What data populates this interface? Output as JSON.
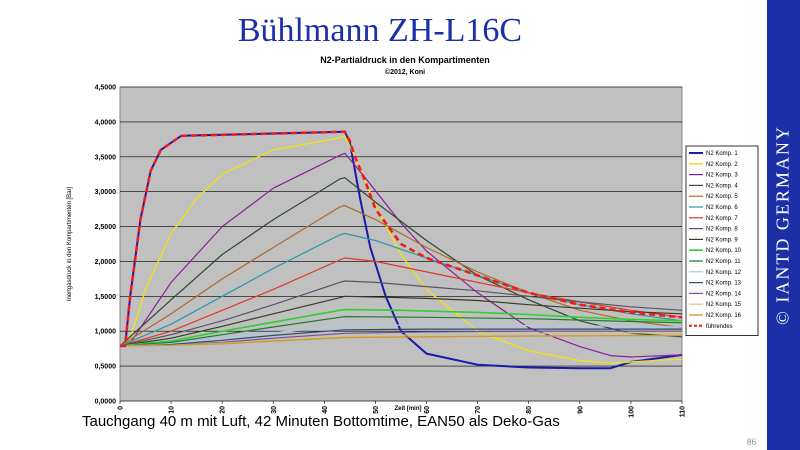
{
  "slide": {
    "title": "Bühlmann ZH-L16C",
    "caption": "Tauchgang 40 m mit Luft, 42 Minuten Bottomtime, EAN50 als Deko-Gas",
    "page_number": "86",
    "sidebar_text": "© IANTD GERMANY",
    "colors": {
      "title": "#1a2fa8",
      "sidebar": "#1c2fa6",
      "plot_bg": "#c0c0c0"
    }
  },
  "chart_data": {
    "type": "line",
    "title": "N2-Partialdruck in den Kompartimenten",
    "subtitle": "©2012, Koni",
    "xlabel": "Zeit [min]",
    "ylabel": "Inertgasdruck in den Kompartimenten [Bar]",
    "xlim": [
      0,
      110
    ],
    "ylim": [
      0,
      4.5
    ],
    "x_ticks": [
      0,
      10,
      20,
      30,
      40,
      50,
      60,
      70,
      80,
      90,
      100,
      110
    ],
    "y_ticks": [
      "0,0000",
      "0,5000",
      "1,0000",
      "1,5000",
      "2,0000",
      "2,5000",
      "3,0000",
      "3,5000",
      "4,0000",
      "4,5000"
    ],
    "grid": true,
    "legend_position": "right",
    "series": [
      {
        "name": "N2 Komp. 1",
        "color": "#1a1aa8",
        "width": 2,
        "values": [
          [
            0,
            0.79
          ],
          [
            1,
            0.79
          ],
          [
            2,
            1.5
          ],
          [
            4,
            2.6
          ],
          [
            6,
            3.3
          ],
          [
            8,
            3.6
          ],
          [
            12,
            3.8
          ],
          [
            44,
            3.86
          ],
          [
            45,
            3.7
          ],
          [
            46,
            3.3
          ],
          [
            47,
            2.9
          ],
          [
            49,
            2.2
          ],
          [
            52,
            1.5
          ],
          [
            55,
            1.0
          ],
          [
            60,
            0.68
          ],
          [
            70,
            0.52
          ],
          [
            80,
            0.48
          ],
          [
            90,
            0.47
          ],
          [
            96,
            0.47
          ],
          [
            100,
            0.56
          ],
          [
            104,
            0.6
          ],
          [
            110,
            0.66
          ]
        ]
      },
      {
        "name": "N2 Komp. 2",
        "color": "#f0e020",
        "width": 1.4,
        "values": [
          [
            0,
            0.79
          ],
          [
            2,
            0.9
          ],
          [
            5,
            1.6
          ],
          [
            10,
            2.4
          ],
          [
            15,
            2.9
          ],
          [
            20,
            3.25
          ],
          [
            30,
            3.6
          ],
          [
            43,
            3.77
          ],
          [
            44,
            3.8
          ],
          [
            46,
            3.5
          ],
          [
            50,
            2.8
          ],
          [
            55,
            2.1
          ],
          [
            60,
            1.6
          ],
          [
            70,
            1.0
          ],
          [
            80,
            0.72
          ],
          [
            90,
            0.58
          ],
          [
            96,
            0.54
          ],
          [
            100,
            0.56
          ],
          [
            110,
            0.6
          ]
        ]
      },
      {
        "name": "N2 Komp. 3",
        "color": "#8a1f96",
        "width": 1.2,
        "values": [
          [
            0,
            0.79
          ],
          [
            2,
            0.83
          ],
          [
            10,
            1.7
          ],
          [
            20,
            2.5
          ],
          [
            30,
            3.05
          ],
          [
            43,
            3.52
          ],
          [
            44,
            3.55
          ],
          [
            48,
            3.2
          ],
          [
            55,
            2.55
          ],
          [
            60,
            2.15
          ],
          [
            70,
            1.55
          ],
          [
            80,
            1.05
          ],
          [
            90,
            0.78
          ],
          [
            96,
            0.65
          ],
          [
            100,
            0.63
          ],
          [
            110,
            0.66
          ]
        ]
      },
      {
        "name": "N2 Komp. 4",
        "color": "#2e4a2e",
        "width": 1.2,
        "values": [
          [
            0,
            0.79
          ],
          [
            10,
            1.45
          ],
          [
            20,
            2.1
          ],
          [
            30,
            2.6
          ],
          [
            43,
            3.18
          ],
          [
            44,
            3.2
          ],
          [
            50,
            2.85
          ],
          [
            60,
            2.3
          ],
          [
            70,
            1.8
          ],
          [
            80,
            1.45
          ],
          [
            90,
            1.15
          ],
          [
            100,
            0.97
          ],
          [
            110,
            0.92
          ]
        ]
      },
      {
        "name": "N2 Komp. 5",
        "color": "#b06a2a",
        "width": 1.2,
        "values": [
          [
            0,
            0.79
          ],
          [
            10,
            1.25
          ],
          [
            20,
            1.75
          ],
          [
            30,
            2.2
          ],
          [
            43,
            2.78
          ],
          [
            44,
            2.8
          ],
          [
            50,
            2.6
          ],
          [
            60,
            2.2
          ],
          [
            70,
            1.85
          ],
          [
            80,
            1.55
          ],
          [
            90,
            1.3
          ],
          [
            100,
            1.15
          ],
          [
            110,
            1.05
          ]
        ]
      },
      {
        "name": "N2 Komp. 6",
        "color": "#2a9aa8",
        "width": 1.2,
        "values": [
          [
            0,
            0.79
          ],
          [
            10,
            1.1
          ],
          [
            20,
            1.5
          ],
          [
            30,
            1.9
          ],
          [
            43,
            2.38
          ],
          [
            44,
            2.4
          ],
          [
            50,
            2.3
          ],
          [
            60,
            2.05
          ],
          [
            70,
            1.8
          ],
          [
            80,
            1.55
          ],
          [
            90,
            1.38
          ],
          [
            100,
            1.25
          ],
          [
            110,
            1.15
          ]
        ]
      },
      {
        "name": "N2 Komp. 7",
        "color": "#e03a2a",
        "width": 1.2,
        "values": [
          [
            0,
            0.79
          ],
          [
            10,
            1.0
          ],
          [
            20,
            1.3
          ],
          [
            30,
            1.6
          ],
          [
            43,
            2.02
          ],
          [
            44,
            2.05
          ],
          [
            50,
            2.0
          ],
          [
            60,
            1.85
          ],
          [
            70,
            1.7
          ],
          [
            80,
            1.55
          ],
          [
            90,
            1.42
          ],
          [
            100,
            1.3
          ],
          [
            110,
            1.2
          ]
        ]
      },
      {
        "name": "N2 Komp. 8",
        "color": "#555566",
        "width": 1.2,
        "values": [
          [
            0,
            0.79
          ],
          [
            10,
            0.95
          ],
          [
            20,
            1.15
          ],
          [
            30,
            1.38
          ],
          [
            43,
            1.7
          ],
          [
            44,
            1.72
          ],
          [
            50,
            1.7
          ],
          [
            60,
            1.64
          ],
          [
            70,
            1.58
          ],
          [
            80,
            1.5
          ],
          [
            90,
            1.42
          ],
          [
            100,
            1.35
          ],
          [
            110,
            1.3
          ]
        ]
      },
      {
        "name": "N2 Komp. 9",
        "color": "#3a3a2a",
        "width": 1.2,
        "values": [
          [
            0,
            0.79
          ],
          [
            10,
            0.9
          ],
          [
            20,
            1.07
          ],
          [
            30,
            1.25
          ],
          [
            43,
            1.48
          ],
          [
            44,
            1.5
          ],
          [
            50,
            1.49
          ],
          [
            60,
            1.47
          ],
          [
            70,
            1.44
          ],
          [
            80,
            1.38
          ],
          [
            90,
            1.33
          ],
          [
            100,
            1.28
          ],
          [
            110,
            1.25
          ]
        ]
      },
      {
        "name": "N2 Komp. 10",
        "color": "#30d030",
        "width": 1.6,
        "values": [
          [
            0,
            0.79
          ],
          [
            10,
            0.86
          ],
          [
            20,
            1.0
          ],
          [
            30,
            1.13
          ],
          [
            43,
            1.3
          ],
          [
            44,
            1.31
          ],
          [
            55,
            1.3
          ],
          [
            70,
            1.27
          ],
          [
            80,
            1.24
          ],
          [
            90,
            1.2
          ],
          [
            100,
            1.17
          ],
          [
            110,
            1.15
          ]
        ]
      },
      {
        "name": "N2 Komp. 11",
        "color": "#1a7a3a",
        "width": 1.2,
        "values": [
          [
            0,
            0.79
          ],
          [
            10,
            0.84
          ],
          [
            20,
            0.95
          ],
          [
            30,
            1.06
          ],
          [
            43,
            1.2
          ],
          [
            44,
            1.21
          ],
          [
            60,
            1.2
          ],
          [
            80,
            1.18
          ],
          [
            100,
            1.14
          ],
          [
            110,
            1.12
          ]
        ]
      },
      {
        "name": "N2 Komp. 12",
        "color": "#a8c8f0",
        "width": 1.2,
        "values": [
          [
            0,
            0.79
          ],
          [
            10,
            0.82
          ],
          [
            20,
            0.9
          ],
          [
            30,
            0.98
          ],
          [
            44,
            1.08
          ],
          [
            60,
            1.09
          ],
          [
            80,
            1.08
          ],
          [
            100,
            1.07
          ],
          [
            110,
            1.06
          ]
        ]
      },
      {
        "name": "N2 Komp. 13",
        "color": "#305060",
        "width": 1.2,
        "values": [
          [
            0,
            0.79
          ],
          [
            10,
            0.81
          ],
          [
            20,
            0.87
          ],
          [
            30,
            0.94
          ],
          [
            44,
            1.02
          ],
          [
            60,
            1.03
          ],
          [
            80,
            1.03
          ],
          [
            110,
            1.03
          ]
        ]
      },
      {
        "name": "N2 Komp. 14",
        "color": "#7a4aa8",
        "width": 1.2,
        "values": [
          [
            0,
            0.79
          ],
          [
            10,
            0.8
          ],
          [
            20,
            0.84
          ],
          [
            30,
            0.9
          ],
          [
            44,
            0.97
          ],
          [
            60,
            0.99
          ],
          [
            80,
            1.0
          ],
          [
            110,
            1.0
          ]
        ]
      },
      {
        "name": "N2 Komp. 15",
        "color": "#c8c890",
        "width": 1.2,
        "values": [
          [
            0,
            0.79
          ],
          [
            10,
            0.8
          ],
          [
            20,
            0.83
          ],
          [
            30,
            0.87
          ],
          [
            44,
            0.93
          ],
          [
            60,
            0.95
          ],
          [
            80,
            0.97
          ],
          [
            110,
            0.98
          ]
        ]
      },
      {
        "name": "N2 Komp. 16",
        "color": "#d09a30",
        "width": 1.4,
        "values": [
          [
            0,
            0.79
          ],
          [
            10,
            0.8
          ],
          [
            20,
            0.82
          ],
          [
            30,
            0.86
          ],
          [
            44,
            0.91
          ],
          [
            60,
            0.92
          ],
          [
            80,
            0.93
          ],
          [
            110,
            0.94
          ]
        ]
      },
      {
        "name": "führendes",
        "color": "#ee1c1c",
        "width": 2.6,
        "dash": "6,4",
        "values": [
          [
            0,
            0.79
          ],
          [
            1,
            0.79
          ],
          [
            2,
            1.5
          ],
          [
            4,
            2.6
          ],
          [
            6,
            3.3
          ],
          [
            8,
            3.6
          ],
          [
            12,
            3.8
          ],
          [
            44,
            3.86
          ],
          [
            45,
            3.72
          ],
          [
            46,
            3.5
          ],
          [
            48,
            3.15
          ],
          [
            50,
            2.75
          ],
          [
            55,
            2.25
          ],
          [
            60,
            2.05
          ],
          [
            70,
            1.8
          ],
          [
            80,
            1.55
          ],
          [
            90,
            1.38
          ],
          [
            100,
            1.27
          ],
          [
            110,
            1.2
          ]
        ]
      }
    ]
  }
}
